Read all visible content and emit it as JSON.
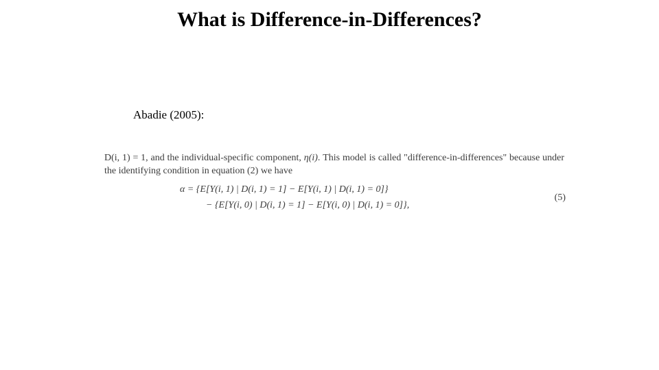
{
  "colors": {
    "background": "#ffffff",
    "title_text": "#000000",
    "body_text": "#3b3b3b"
  },
  "title": {
    "text": "What is Difference-in-Differences?",
    "fontsize": 30,
    "fontweight": "700",
    "font_family": "Times New Roman"
  },
  "citation": {
    "text": "Abadie (2005):",
    "fontsize": 17
  },
  "excerpt": {
    "paragraph_parts": {
      "p1": "D(i, 1) = 1, and the individual-specific component, ",
      "eta": "η(i)",
      "p2": ". This model is called \"difference-in-differences\" because under the identifying condition in equation (2) we have"
    },
    "equation": {
      "line1": "α = {E[Y(i, 1) | D(i, 1) = 1] − E[Y(i, 1) | D(i, 1) = 0]}",
      "line2": "− {E[Y(i, 0) | D(i, 1) = 1] − E[Y(i, 0) | D(i, 1) = 0]},",
      "number": "(5)"
    },
    "fontsize": 14,
    "font_family": "Times New Roman"
  }
}
